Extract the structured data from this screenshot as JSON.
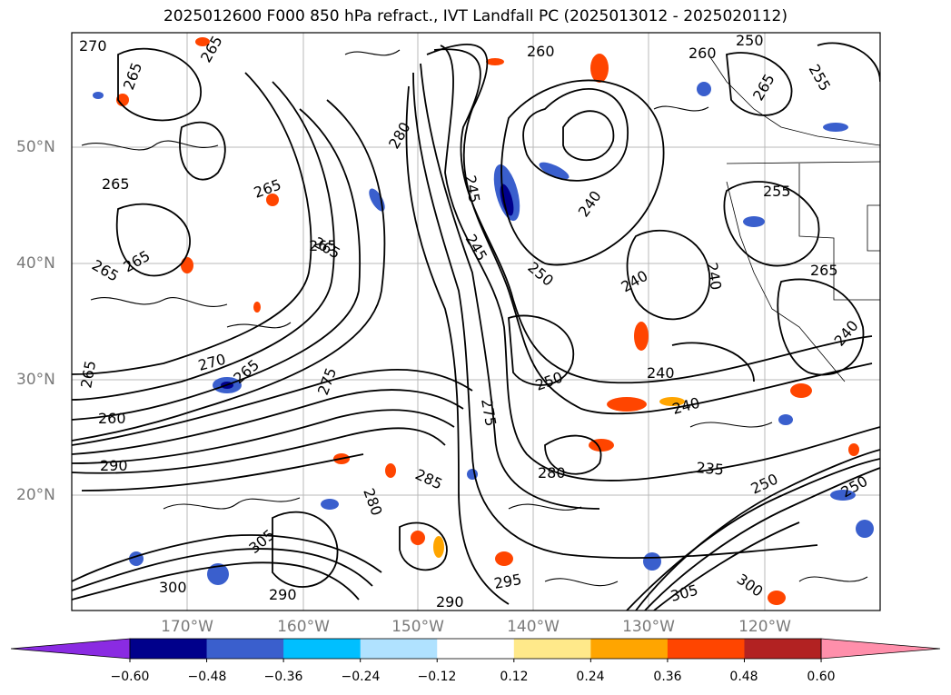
{
  "title": "2025012600 F000 850 hPa refract., IVT Landfall PC (2025013012 - 2025020112)",
  "map": {
    "lat_labels": [
      "50°N",
      "40°N",
      "30°N",
      "20°N"
    ],
    "lon_labels": [
      "170°W",
      "160°W",
      "150°W",
      "140°W",
      "130°W",
      "120°W"
    ],
    "contour_labels": [
      "270",
      "265",
      "265",
      "265",
      "265",
      "265",
      "265",
      "270",
      "265",
      "265",
      "260",
      "290",
      "280",
      "245",
      "240",
      "240",
      "250",
      "245",
      "260",
      "260",
      "250",
      "255",
      "265",
      "255",
      "265",
      "240",
      "250",
      "240",
      "265",
      "240",
      "240",
      "235",
      "250",
      "280",
      "275",
      "285",
      "290",
      "305",
      "300",
      "290",
      "295",
      "305",
      "300",
      "275",
      "280",
      "265",
      "250"
    ]
  },
  "colorbar": {
    "ticks": [
      "−0.60",
      "−0.48",
      "−0.36",
      "−0.24",
      "−0.12",
      "0.12",
      "0.24",
      "0.36",
      "0.48",
      "0.60"
    ],
    "colors": [
      "#8a2be2",
      "#00008b",
      "#3a5fcd",
      "#00bfff",
      "#b0e2ff",
      "#ffffff",
      "#ffe98a",
      "#ffa500",
      "#ff4500",
      "#b22222",
      "#ff8fab"
    ]
  }
}
